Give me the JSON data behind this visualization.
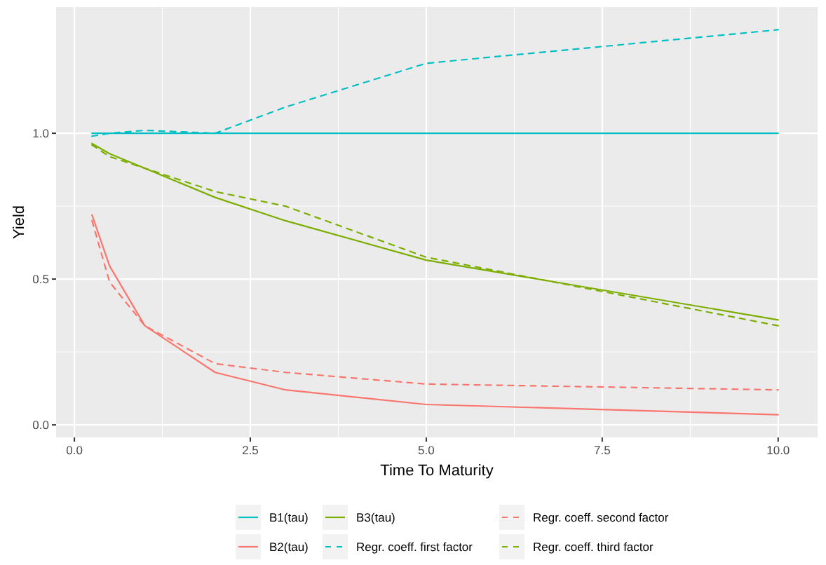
{
  "chart_data": {
    "type": "line",
    "xlabel": "Time To Maturity",
    "ylabel": "Yield",
    "x": [
      0.25,
      0.5,
      1,
      2,
      3,
      5,
      10
    ],
    "series": [
      {
        "name": "B1(tau)",
        "color": "#00bfc4",
        "line_style": "solid",
        "values": [
          1.0,
          1.0,
          1.0,
          1.0,
          1.0,
          1.0,
          1.0
        ]
      },
      {
        "name": "B2(tau)",
        "color": "#f8766d",
        "line_style": "solid",
        "values": [
          0.72,
          0.545,
          0.34,
          0.18,
          0.12,
          0.07,
          0.035
        ]
      },
      {
        "name": "B3(tau)",
        "color": "#7cae00",
        "line_style": "solid",
        "values": [
          0.965,
          0.93,
          0.88,
          0.78,
          0.7,
          0.565,
          0.36
        ]
      },
      {
        "name": "Regr. coeff. first factor",
        "color": "#00bfc4",
        "line_style": "dashed",
        "values": [
          0.99,
          1.0,
          1.01,
          1.0,
          1.09,
          1.24,
          1.355
        ]
      },
      {
        "name": "Regr. coeff. second factor",
        "color": "#f8766d",
        "line_style": "dashed",
        "values": [
          0.7,
          0.49,
          0.34,
          0.21,
          0.18,
          0.14,
          0.12
        ]
      },
      {
        "name": "Regr. coeff. third factor",
        "color": "#7cae00",
        "line_style": "dashed",
        "values": [
          0.96,
          0.92,
          0.88,
          0.8,
          0.75,
          0.575,
          0.34
        ]
      }
    ],
    "xlim": [
      -0.26,
      10.56
    ],
    "xticks": [
      {
        "value": 0,
        "label": "0.0"
      },
      2.5,
      {
        "value": 5,
        "label": "5.0"
      },
      7.5,
      {
        "value": 10,
        "label": "10.0"
      }
    ],
    "ylim": [
      -0.043,
      1.433
    ],
    "yticks": [
      {
        "value": 0,
        "label": "0.0"
      },
      0.5,
      {
        "value": 1,
        "label": "1.0"
      }
    ],
    "grid": true,
    "legend": "bottom",
    "marker": "none"
  }
}
